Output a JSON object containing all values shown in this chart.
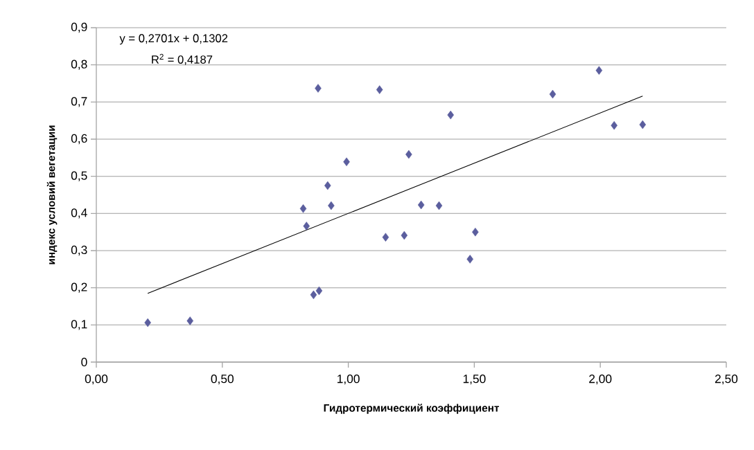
{
  "chart_data": {
    "type": "scatter",
    "xlabel": "Гидротермический коэффициент",
    "ylabel": "индекс условий вегетации",
    "annotations": [
      "y = 0,2701x + 0,1302",
      "R$^{2}$ = 0,4187"
    ],
    "series": [
      {
        "color": "#5b5e9e",
        "marker": "diamond",
        "x": [
          0.204,
          0.372,
          0.88,
          1.124,
          1.24,
          0.993,
          0.918,
          0.821,
          0.932,
          1.289,
          0.834,
          1.148,
          1.222,
          0.862,
          0.884,
          1.36,
          1.406,
          1.504,
          1.483,
          1.811,
          1.995,
          2.055,
          2.168
        ],
        "values": [
          0.106,
          0.111,
          0.737,
          0.733,
          0.559,
          0.539,
          0.475,
          0.413,
          0.421,
          0.423,
          0.366,
          0.336,
          0.341,
          0.181,
          0.192,
          0.421,
          0.665,
          0.35,
          0.277,
          0.721,
          0.785,
          0.637,
          0.639
        ]
      },
      {
        "type": "line",
        "color": "#000000",
        "marker": "none",
        "x": [
          0.204,
          2.168
        ],
        "values": [
          0.185,
          0.716
        ]
      }
    ],
    "xlim": [
      0,
      2.5
    ],
    "xticks": [
      {
        "value": 0,
        "label": "0,00"
      },
      {
        "value": 0.5,
        "label": "0,50"
      },
      {
        "value": 1,
        "label": "1,00"
      },
      {
        "value": 1.5,
        "label": "1,50"
      },
      {
        "value": 2,
        "label": "2,00"
      },
      {
        "value": 2.5,
        "label": "2,50"
      }
    ],
    "ylim": [
      0,
      0.9
    ],
    "yticks": [
      0,
      {
        "value": 0.1,
        "label": "0,1"
      },
      {
        "value": 0.2,
        "label": "0,2"
      },
      {
        "value": 0.3,
        "label": "0,3"
      },
      {
        "value": 0.4,
        "label": "0,4"
      },
      {
        "value": 0.5,
        "label": "0,5"
      },
      {
        "value": 0.6,
        "label": "0,6"
      },
      {
        "value": 0.7,
        "label": "0,7"
      },
      {
        "value": 0.8,
        "label": "0,8"
      },
      {
        "value": 0.9,
        "label": "0,9"
      }
    ],
    "grid": "y"
  }
}
